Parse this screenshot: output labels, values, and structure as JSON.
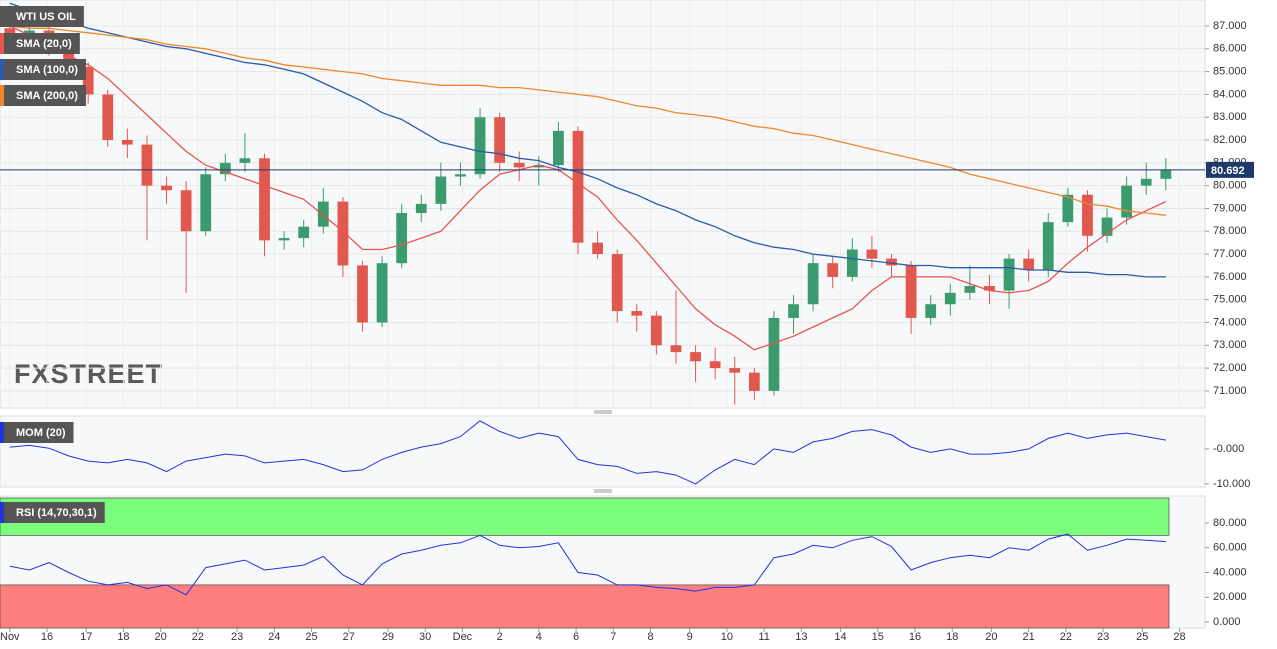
{
  "chart_data": [
    {
      "type": "candlestick",
      "title": "WTI US OIL",
      "watermark": "FXSTREET",
      "up_color": "#3b9a6e",
      "down_color": "#e0584e",
      "grid": true,
      "open": [
        86.9,
        86.5,
        86.8,
        86.0,
        85.2,
        84.0,
        82.0,
        81.8,
        80.0,
        79.8,
        78.0,
        80.5,
        81.0,
        81.2,
        77.6,
        77.7,
        78.2,
        79.3,
        76.5,
        74.0,
        76.6,
        78.8,
        79.2,
        80.4,
        80.5,
        83.0,
        81.0,
        80.8,
        80.9,
        82.4,
        77.5,
        77.0,
        74.5,
        74.3,
        73.0,
        72.7,
        72.3,
        72.0,
        71.8,
        71.0,
        74.2,
        74.8,
        76.6,
        76.0,
        77.2,
        76.8,
        76.5,
        74.2,
        74.8,
        75.3,
        75.6,
        75.4,
        76.8,
        76.3,
        78.4,
        79.6,
        77.8,
        78.6,
        80.0,
        80.3
      ],
      "high": [
        87.3,
        87.2,
        87.0,
        86.2,
        85.4,
        84.2,
        82.5,
        82.2,
        80.4,
        80.2,
        80.8,
        81.4,
        82.3,
        81.4,
        78.0,
        78.5,
        79.9,
        79.5,
        76.7,
        76.9,
        79.2,
        79.6,
        81.0,
        81.0,
        83.4,
        83.2,
        81.5,
        81.3,
        82.8,
        82.6,
        78.0,
        77.2,
        74.8,
        74.5,
        75.4,
        73.0,
        72.9,
        72.5,
        72.0,
        74.5,
        75.2,
        77.0,
        76.9,
        77.7,
        77.8,
        77.0,
        76.7,
        75.2,
        75.7,
        76.5,
        76.1,
        77.0,
        77.2,
        78.8,
        79.9,
        79.8,
        79.0,
        80.4,
        81.0,
        81.2
      ],
      "low": [
        86.2,
        86.3,
        85.7,
        84.9,
        83.6,
        81.7,
        81.2,
        77.6,
        79.2,
        75.3,
        77.8,
        80.2,
        80.6,
        76.9,
        77.2,
        77.3,
        77.9,
        76.0,
        73.6,
        73.8,
        76.4,
        78.4,
        78.9,
        80.0,
        80.3,
        80.6,
        80.2,
        80.0,
        80.6,
        77.0,
        76.8,
        74.0,
        73.6,
        72.6,
        72.2,
        71.4,
        71.5,
        70.4,
        70.6,
        70.8,
        73.5,
        74.5,
        75.5,
        75.8,
        76.4,
        76.0,
        73.5,
        73.9,
        74.3,
        75.0,
        74.8,
        74.6,
        75.8,
        76.0,
        78.2,
        77.1,
        77.5,
        78.3,
        79.6,
        79.8
      ],
      "close": [
        86.5,
        86.8,
        86.0,
        85.2,
        84.0,
        82.0,
        81.8,
        80.0,
        79.8,
        78.0,
        80.5,
        81.0,
        81.2,
        77.6,
        77.7,
        78.2,
        79.3,
        76.5,
        74.0,
        76.6,
        78.8,
        79.2,
        80.4,
        80.5,
        83.0,
        81.0,
        80.8,
        80.9,
        82.4,
        77.5,
        77.0,
        74.5,
        74.3,
        73.0,
        72.7,
        72.3,
        72.0,
        71.8,
        71.0,
        74.2,
        74.8,
        76.6,
        76.0,
        77.2,
        76.8,
        76.5,
        74.2,
        74.8,
        75.3,
        75.6,
        75.4,
        76.8,
        76.3,
        78.4,
        79.6,
        77.8,
        78.6,
        80.0,
        80.3,
        80.692
      ],
      "overlays": [
        {
          "name": "SMA (20,0)",
          "color": "#e8554e",
          "values": [
            87.0,
            86.6,
            86.1,
            85.7,
            85.3,
            84.7,
            83.9,
            83.1,
            82.3,
            81.5,
            80.9,
            80.6,
            80.3,
            80.0,
            79.7,
            79.4,
            78.7,
            78.0,
            77.2,
            77.2,
            77.4,
            77.7,
            78.0,
            78.9,
            79.8,
            80.5,
            80.7,
            80.9,
            80.7,
            80.1,
            79.5,
            78.5,
            77.6,
            76.6,
            75.6,
            74.6,
            73.9,
            73.4,
            72.8,
            73.1,
            73.4,
            73.8,
            74.2,
            74.6,
            75.4,
            76.0,
            76.0,
            76.0,
            76.0,
            75.7,
            75.4,
            75.3,
            75.4,
            75.8,
            76.6,
            77.3,
            77.9,
            78.5,
            78.9,
            79.3
          ]
        },
        {
          "name": "SMA (100,0)",
          "color": "#2a5caa",
          "values": [
            88.0,
            87.7,
            87.5,
            87.2,
            86.9,
            86.7,
            86.5,
            86.3,
            86.1,
            86.0,
            85.8,
            85.6,
            85.4,
            85.3,
            85.1,
            84.9,
            84.5,
            84.1,
            83.7,
            83.2,
            82.9,
            82.4,
            81.9,
            81.7,
            81.5,
            81.4,
            81.2,
            81.1,
            80.8,
            80.6,
            80.3,
            79.9,
            79.6,
            79.2,
            78.9,
            78.5,
            78.2,
            77.8,
            77.5,
            77.3,
            77.2,
            77.0,
            76.9,
            76.8,
            76.7,
            76.6,
            76.5,
            76.5,
            76.4,
            76.4,
            76.4,
            76.4,
            76.3,
            76.3,
            76.2,
            76.2,
            76.1,
            76.1,
            76.0,
            76.0
          ]
        },
        {
          "name": "SMA (200,0)",
          "color": "#f0882a",
          "values": [
            87.0,
            86.9,
            86.9,
            86.8,
            86.7,
            86.6,
            86.5,
            86.4,
            86.2,
            86.1,
            86.0,
            85.8,
            85.6,
            85.5,
            85.3,
            85.2,
            85.1,
            85.0,
            84.9,
            84.7,
            84.6,
            84.5,
            84.4,
            84.4,
            84.4,
            84.3,
            84.3,
            84.2,
            84.1,
            84.0,
            83.9,
            83.7,
            83.5,
            83.4,
            83.2,
            83.1,
            83.0,
            82.8,
            82.6,
            82.5,
            82.3,
            82.2,
            82.0,
            81.8,
            81.6,
            81.4,
            81.2,
            81.0,
            80.8,
            80.5,
            80.3,
            80.1,
            79.9,
            79.7,
            79.5,
            79.2,
            79.1,
            78.9,
            78.8,
            78.7
          ]
        }
      ],
      "ylim": [
        70.25,
        88.14
      ],
      "yticks": [
        {
          "value": 71,
          "label": "71.000"
        },
        {
          "value": 72,
          "label": "72.000"
        },
        {
          "value": 73,
          "label": "73.000"
        },
        {
          "value": 74,
          "label": "74.000"
        },
        {
          "value": 75,
          "label": "75.000"
        },
        {
          "value": 76,
          "label": "76.000"
        },
        {
          "value": 77,
          "label": "77.000"
        },
        {
          "value": 78,
          "label": "78.000"
        },
        {
          "value": 79,
          "label": "79.000"
        },
        {
          "value": 80,
          "label": "80.000"
        },
        {
          "value": 81,
          "label": "81.000"
        },
        {
          "value": 82,
          "label": "82.000"
        },
        {
          "value": 83,
          "label": "83.000"
        },
        {
          "value": 84,
          "label": "84.000"
        },
        {
          "value": 85,
          "label": "85.000"
        },
        {
          "value": 86,
          "label": "86.000"
        },
        {
          "value": 87,
          "label": "87.000"
        }
      ],
      "xlim": [
        -0.5,
        61
      ],
      "xticks": [
        {
          "value": 0,
          "label": "Nov"
        },
        {
          "value": 1.9,
          "label": "16"
        },
        {
          "value": 3.9,
          "label": "17"
        },
        {
          "value": 5.8,
          "label": "18"
        },
        {
          "value": 7.7,
          "label": "20"
        },
        {
          "value": 9.6,
          "label": "22"
        },
        {
          "value": 11.6,
          "label": "23"
        },
        {
          "value": 13.5,
          "label": "24"
        },
        {
          "value": 15.4,
          "label": "25"
        },
        {
          "value": 17.3,
          "label": "27"
        },
        {
          "value": 19.3,
          "label": "29"
        },
        {
          "value": 21.2,
          "label": "30"
        },
        {
          "value": 23.1,
          "label": "Dec"
        },
        {
          "value": 25,
          "label": "2"
        },
        {
          "value": 27,
          "label": "4"
        },
        {
          "value": 28.9,
          "label": "6"
        },
        {
          "value": 30.8,
          "label": "7"
        },
        {
          "value": 32.7,
          "label": "8"
        },
        {
          "value": 34.7,
          "label": "9"
        },
        {
          "value": 36.6,
          "label": "10"
        },
        {
          "value": 38.5,
          "label": "11"
        },
        {
          "value": 40.4,
          "label": "13"
        },
        {
          "value": 42.4,
          "label": "14"
        },
        {
          "value": 44.3,
          "label": "15"
        },
        {
          "value": 46.2,
          "label": "16"
        },
        {
          "value": 48.1,
          "label": "18"
        },
        {
          "value": 50.1,
          "label": "20"
        },
        {
          "value": 52,
          "label": "21"
        },
        {
          "value": 53.9,
          "label": "22"
        },
        {
          "value": 55.8,
          "label": "23"
        },
        {
          "value": 57.8,
          "label": "25"
        },
        {
          "value": 59.7,
          "label": "28"
        }
      ]
    },
    {
      "type": "line",
      "series": [
        {
          "name": "MOM (20)",
          "color": "#2233dd",
          "values": [
            0.5,
            1.0,
            0.2,
            -2.0,
            -3.5,
            -4.0,
            -3.0,
            -4.0,
            -6.5,
            -3.5,
            -2.5,
            -1.5,
            -2.0,
            -4.0,
            -3.5,
            -3.0,
            -4.5,
            -6.5,
            -6.0,
            -3.0,
            -1.0,
            0.5,
            1.5,
            3.5,
            8.0,
            5.0,
            3.0,
            4.5,
            3.5,
            -3.0,
            -4.5,
            -5.0,
            -7.0,
            -6.5,
            -7.5,
            -10.0,
            -6.0,
            -3.0,
            -4.5,
            0.0,
            -1.0,
            2.0,
            3.0,
            5.0,
            5.5,
            4.0,
            0.5,
            -1.0,
            0.0,
            -1.5,
            -1.5,
            -1.0,
            0.0,
            3.0,
            4.5,
            3.0,
            4.0,
            4.5,
            3.5,
            2.5
          ]
        }
      ],
      "ylim": [
        -10.9,
        9.4
      ],
      "yticks": [
        {
          "value": 0,
          "label": "-0.000"
        },
        {
          "value": -10,
          "label": "-10.000"
        }
      ]
    },
    {
      "type": "line",
      "series": [
        {
          "name": "RSI (14,70,30,1)",
          "color": "#2233dd",
          "values": [
            45,
            42,
            48,
            40,
            33,
            30,
            32,
            27,
            30,
            22,
            44,
            47,
            50,
            42,
            44,
            46,
            53,
            38,
            30,
            47,
            55,
            58,
            62,
            64,
            70,
            62,
            60,
            61,
            64,
            40,
            38,
            30,
            30,
            28,
            27,
            25,
            28,
            28,
            30,
            52,
            55,
            62,
            60,
            66,
            69,
            61,
            42,
            48,
            52,
            54,
            52,
            60,
            58,
            67,
            71,
            58,
            62,
            67,
            66,
            65
          ]
        }
      ],
      "upper_band": 70,
      "lower_band": 30,
      "upper_color": "#7cfc7c",
      "lower_color": "#ff7f7f",
      "ylim": [
        -4.8,
        101.8
      ],
      "yticks": [
        {
          "value": 0,
          "label": "0.000"
        },
        {
          "value": 20,
          "label": "20.000"
        },
        {
          "value": 40,
          "label": "40.000"
        },
        {
          "value": 60,
          "label": "60.000"
        },
        {
          "value": 80,
          "label": "80.000"
        }
      ]
    }
  ]
}
